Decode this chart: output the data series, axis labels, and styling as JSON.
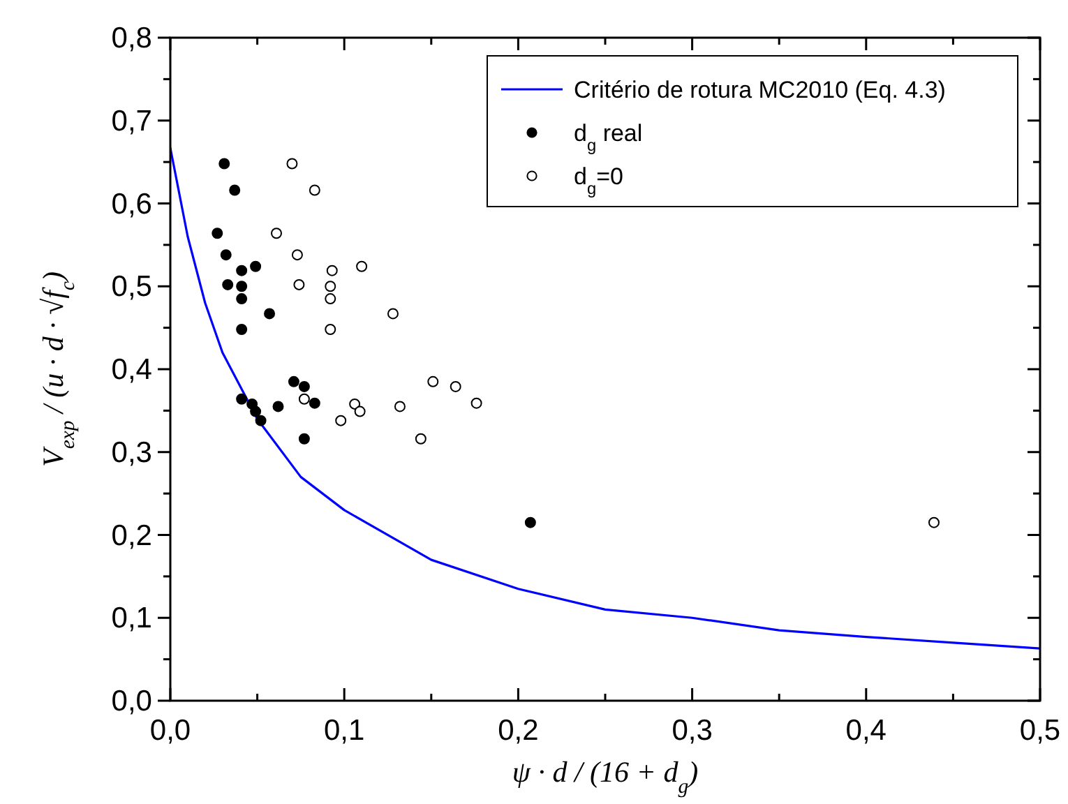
{
  "chart_data": {
    "type": "scatter",
    "xlabel": "ψ · d / (16 + d$_{g}$)",
    "ylabel": "V$_{exp}$ / (u · d · √f$_{c}$)",
    "xlim": [
      0,
      0.5
    ],
    "ylim": [
      0,
      0.8
    ],
    "xticks": [
      {
        "value": 0,
        "label": "0,0"
      },
      {
        "value": 0.05,
        "label": null
      },
      {
        "value": 0.1,
        "label": "0,1"
      },
      {
        "value": 0.15,
        "label": null
      },
      {
        "value": 0.2,
        "label": "0,2"
      },
      {
        "value": 0.25,
        "label": null
      },
      {
        "value": 0.3,
        "label": "0,3"
      },
      {
        "value": 0.35,
        "label": null
      },
      {
        "value": 0.4,
        "label": "0,4"
      },
      {
        "value": 0.45,
        "label": null
      },
      {
        "value": 0.5,
        "label": "0,5"
      }
    ],
    "yticks": [
      {
        "value": 0,
        "label": "0,0"
      },
      {
        "value": 0.05,
        "label": null
      },
      {
        "value": 0.1,
        "label": "0,1"
      },
      {
        "value": 0.15,
        "label": null
      },
      {
        "value": 0.2,
        "label": "0,2"
      },
      {
        "value": 0.25,
        "label": null
      },
      {
        "value": 0.3,
        "label": "0,3"
      },
      {
        "value": 0.35,
        "label": null
      },
      {
        "value": 0.4,
        "label": "0,4"
      },
      {
        "value": 0.45,
        "label": null
      },
      {
        "value": 0.5,
        "label": "0,5"
      },
      {
        "value": 0.55,
        "label": null
      },
      {
        "value": 0.6,
        "label": "0,6"
      },
      {
        "value": 0.65,
        "label": null
      },
      {
        "value": 0.7,
        "label": "0,7"
      },
      {
        "value": 0.75,
        "label": null
      },
      {
        "value": 0.8,
        "label": "0,8"
      }
    ],
    "legend": "top right",
    "marker": "circle",
    "series": [
      {
        "name": "Critério de rotura MC2010 (Eq. 4.3)",
        "type": "line",
        "color": "#0000ff",
        "marker": "none",
        "line_style": "solid",
        "x": [
          0,
          0.01,
          0.02,
          0.03,
          0.05,
          0.075,
          0.1,
          0.15,
          0.2,
          0.25,
          0.3,
          0.35,
          0.4,
          0.45,
          0.5
        ],
        "values": [
          0.667,
          0.56,
          0.48,
          0.42,
          0.34,
          0.27,
          0.23,
          0.17,
          0.135,
          0.11,
          0.1,
          0.085,
          0.077,
          0.07,
          0.063
        ]
      },
      {
        "name": "d$_{g}$ real",
        "color": "#000000",
        "x": [
          0.031,
          0.037,
          0.027,
          0.032,
          0.033,
          0.041,
          0.049,
          0.041,
          0.041,
          0.041,
          0.057,
          0.071,
          0.077,
          0.083,
          0.062,
          0.041,
          0.047,
          0.049,
          0.052,
          0.077,
          0.207
        ],
        "values": [
          0.648,
          0.616,
          0.564,
          0.538,
          0.502,
          0.519,
          0.524,
          0.5,
          0.485,
          0.448,
          0.467,
          0.385,
          0.379,
          0.359,
          0.355,
          0.364,
          0.358,
          0.349,
          0.338,
          0.316,
          0.215
        ]
      },
      {
        "name": "d$_{g}$=0",
        "color": "#ffffff",
        "x": [
          0.07,
          0.083,
          0.061,
          0.073,
          0.074,
          0.093,
          0.11,
          0.092,
          0.092,
          0.092,
          0.128,
          0.151,
          0.164,
          0.176,
          0.132,
          0.077,
          0.106,
          0.109,
          0.098,
          0.144,
          0.439
        ],
        "values": [
          0.648,
          0.616,
          0.564,
          0.538,
          0.502,
          0.519,
          0.524,
          0.5,
          0.485,
          0.448,
          0.467,
          0.385,
          0.379,
          0.359,
          0.355,
          0.364,
          0.358,
          0.349,
          0.338,
          0.316,
          0.215
        ]
      }
    ]
  }
}
